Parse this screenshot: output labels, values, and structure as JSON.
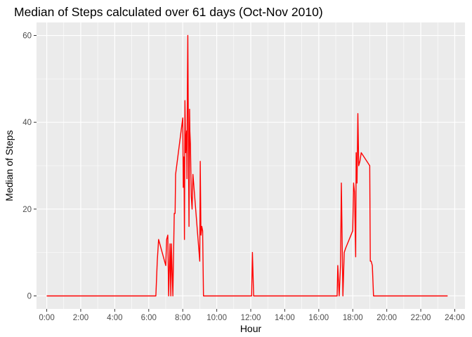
{
  "chart_data": {
    "type": "line",
    "title": "Median of Steps calculated over 61 days (Oct-Nov 2010)",
    "xlabel": "Hour",
    "ylabel": "Median of Steps",
    "x_unit": "hours",
    "xlim": [
      -0.6,
      24.6
    ],
    "ylim": [
      -3,
      63
    ],
    "x_ticks": [
      {
        "value": 0,
        "label": "0:00"
      },
      {
        "value": 2,
        "label": "2:00"
      },
      {
        "value": 4,
        "label": "4:00"
      },
      {
        "value": 6,
        "label": "6:00"
      },
      {
        "value": 8,
        "label": "8:00"
      },
      {
        "value": 10,
        "label": "10:00"
      },
      {
        "value": 12,
        "label": "12:00"
      },
      {
        "value": 14,
        "label": "14:00"
      },
      {
        "value": 16,
        "label": "16:00"
      },
      {
        "value": 18,
        "label": "18:00"
      },
      {
        "value": 20,
        "label": "20:00"
      },
      {
        "value": 22,
        "label": "22:00"
      },
      {
        "value": 24,
        "label": "24:00"
      }
    ],
    "y_ticks": [
      {
        "value": 0,
        "label": "0"
      },
      {
        "value": 20,
        "label": "20"
      },
      {
        "value": 40,
        "label": "40"
      },
      {
        "value": 60,
        "label": "60"
      }
    ],
    "grid": true,
    "background": "#ebebeb",
    "line_color": "#ff0000",
    "series": [
      {
        "x": [
          0,
          6.42,
          6.5,
          6.58,
          7.0,
          7.05,
          7.12,
          7.17,
          7.25,
          7.3,
          7.33,
          7.42,
          7.5,
          7.55,
          7.58,
          8.0,
          8.03,
          8.07,
          8.1,
          8.13,
          8.17,
          8.2,
          8.23,
          8.25,
          8.27,
          8.3,
          8.33,
          8.37,
          8.4,
          8.42,
          8.45,
          8.5,
          8.55,
          8.6,
          9.0,
          9.03,
          9.07,
          9.12,
          9.17,
          9.22,
          9.28,
          12.05,
          12.1,
          12.17,
          17.08,
          17.12,
          17.2,
          17.28,
          17.33,
          17.42,
          17.5,
          17.58,
          18.0,
          18.05,
          18.1,
          18.17,
          18.2,
          18.25,
          18.3,
          18.33,
          18.35,
          18.42,
          18.5,
          19.0,
          19.03,
          19.08,
          19.15,
          19.22,
          19.33,
          23.58
        ],
        "y": [
          0,
          0,
          8,
          13,
          7,
          13,
          14,
          0,
          12,
          0,
          12,
          0,
          19,
          19,
          28,
          41,
          25,
          32,
          13,
          45,
          33,
          36,
          38,
          27,
          46,
          60,
          38,
          16,
          43,
          38,
          35,
          23,
          20,
          28,
          8,
          31,
          14,
          16,
          15,
          0,
          0,
          0,
          10,
          0,
          0,
          7,
          0,
          7,
          26,
          0,
          10,
          11,
          15,
          26,
          24,
          9,
          33,
          26,
          42,
          35,
          30,
          31,
          33,
          30,
          8,
          8,
          7,
          0,
          0,
          0
        ]
      }
    ]
  }
}
